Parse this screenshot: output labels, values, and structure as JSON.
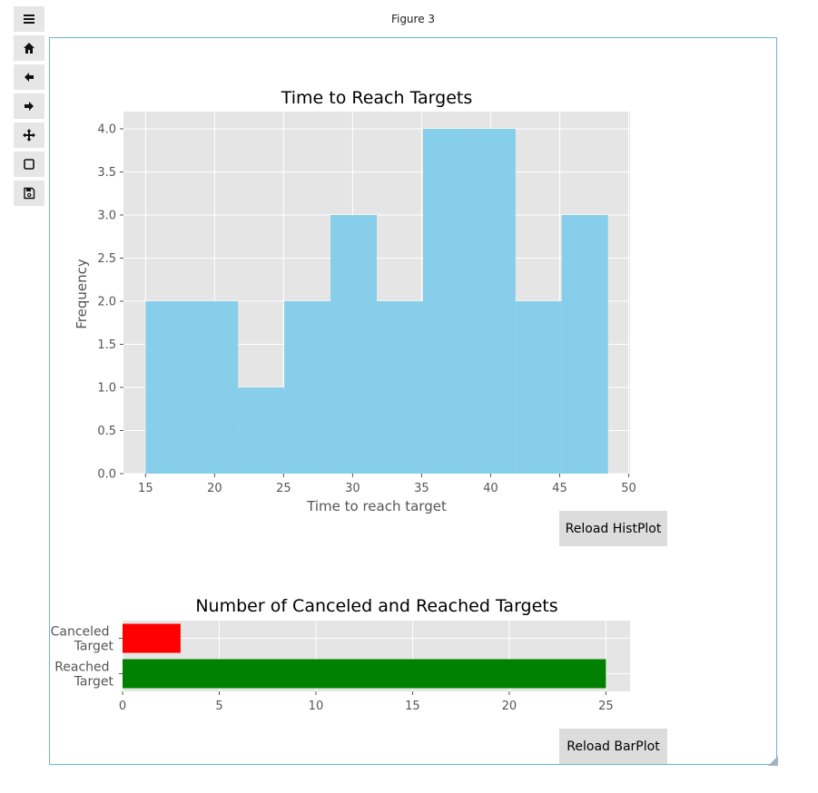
{
  "window": {
    "title": "Figure 3"
  },
  "toolbar": {
    "items": [
      {
        "name": "menu-icon"
      },
      {
        "name": "home-icon"
      },
      {
        "name": "back-arrow-icon"
      },
      {
        "name": "forward-arrow-icon"
      },
      {
        "name": "pan-icon"
      },
      {
        "name": "zoom-rect-icon"
      },
      {
        "name": "save-icon"
      }
    ]
  },
  "buttons": {
    "reload_hist": "Reload HistPlot",
    "reload_bar": "Reload BarPlot"
  },
  "colors": {
    "hist_bar": "#87ceeb",
    "canceled_bar": "#ff0000",
    "reached_bar": "#008000",
    "axes_bg": "#e5e5e5",
    "grid": "#ffffff",
    "frame_border": "#6cb3d8"
  },
  "chart_data": [
    {
      "type": "bar",
      "title": "Time to Reach Targets",
      "xlabel": "Time to reach target",
      "ylabel": "Frequency",
      "bin_edges": [
        15.0,
        18.35,
        21.7,
        25.05,
        28.4,
        31.75,
        35.1,
        38.45,
        41.8,
        45.15,
        48.5
      ],
      "values": [
        2,
        2,
        1,
        2,
        3,
        2,
        4,
        4,
        2,
        3
      ],
      "xlim": [
        13.4,
        50.1
      ],
      "ylim": [
        0,
        4.2
      ],
      "xticks": [
        15,
        20,
        25,
        30,
        35,
        40,
        45,
        50
      ],
      "yticks": [
        0.0,
        0.5,
        1.0,
        1.5,
        2.0,
        2.5,
        3.0,
        3.5,
        4.0
      ],
      "grid": true
    },
    {
      "type": "bar",
      "orientation": "horizontal",
      "title": "Number of Canceled and Reached Targets",
      "categories": [
        "Canceled Target",
        "Reached Target"
      ],
      "values": [
        3,
        25
      ],
      "xlim": [
        0,
        26.25
      ],
      "xticks": [
        0,
        5,
        10,
        15,
        20,
        25
      ],
      "grid": true
    }
  ]
}
